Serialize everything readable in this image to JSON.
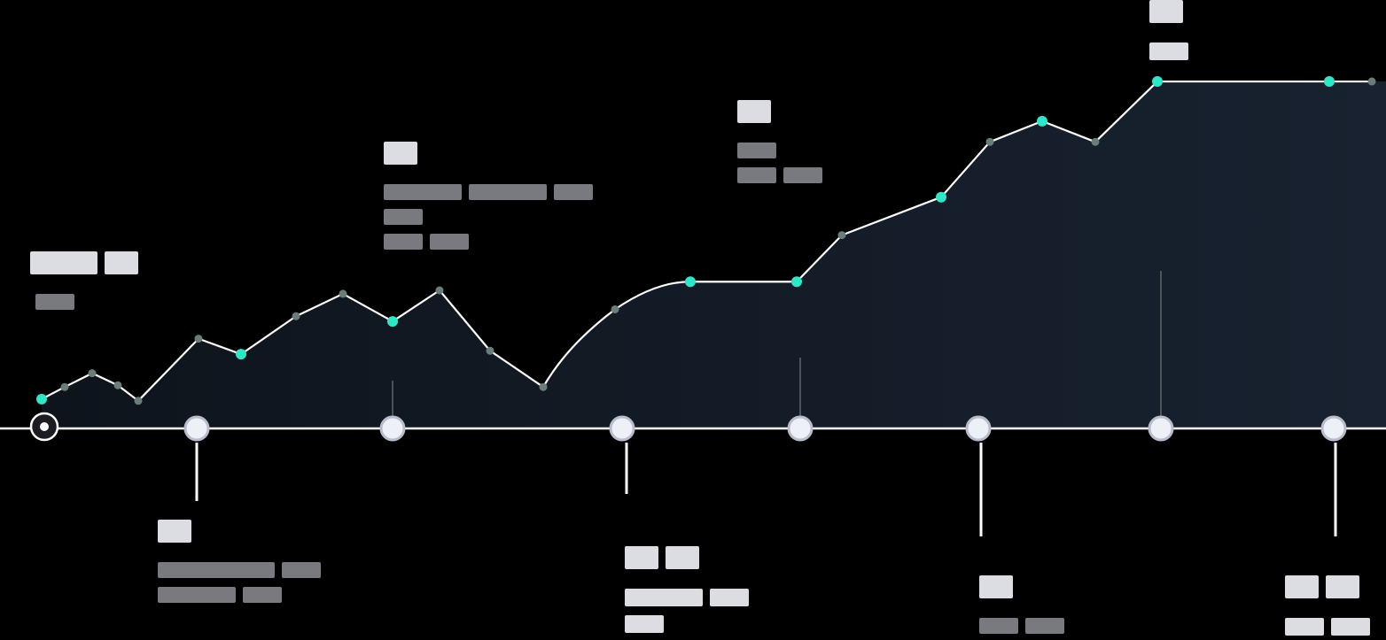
{
  "colors": {
    "background": "#000000",
    "area_fill": "#141c26",
    "trend_line": "#ffffff",
    "highlight_point": "#2ee6c8",
    "minor_point": "#6b7d7a",
    "baseline": "#ffffff",
    "node_fill": "#eef0f8",
    "node_stroke": "#b8bccb",
    "connector": "#ffffff",
    "guide": "#8a8a8a",
    "block_bright": "#e7e9ee",
    "block_dim": "#8d8f95"
  },
  "milestones": [
    {
      "id": "m0",
      "kind": "start",
      "caption_side": "above",
      "caption_lines": [
        [
          "bright",
          2,
          1
        ],
        [
          "dim",
          1
        ]
      ]
    },
    {
      "id": "m1",
      "kind": "node",
      "caption_side": "below",
      "caption_lines": [
        [
          "bright",
          1
        ],
        [
          "dim",
          3,
          1
        ],
        [
          "dim",
          2,
          1
        ]
      ]
    },
    {
      "id": "m2",
      "kind": "node",
      "caption_side": "above",
      "caption_lines": [
        [
          "bright",
          1
        ],
        [
          "dim",
          2,
          2,
          1
        ],
        [
          "dim",
          1
        ],
        [
          "dim",
          1,
          1
        ]
      ]
    },
    {
      "id": "m3",
      "kind": "node",
      "caption_side": "below",
      "caption_lines": [
        [
          "bright",
          1,
          1
        ],
        [
          "bright",
          2,
          1
        ],
        [
          "bright",
          1
        ]
      ]
    },
    {
      "id": "m4",
      "kind": "node",
      "caption_side": "above",
      "caption_lines": [
        [
          "bright",
          1
        ],
        [
          "dim",
          1
        ],
        [
          "dim",
          1,
          1
        ]
      ]
    },
    {
      "id": "m5",
      "kind": "node",
      "caption_side": "below",
      "caption_lines": [
        [
          "bright",
          1
        ],
        [
          "dim",
          1,
          1
        ]
      ]
    },
    {
      "id": "m6",
      "kind": "node",
      "caption_side": "above",
      "caption_lines": [
        [
          "bright",
          1
        ],
        [
          "bright",
          1
        ]
      ]
    },
    {
      "id": "m7",
      "kind": "node",
      "caption_side": "below",
      "caption_lines": [
        [
          "bright",
          1,
          1
        ],
        [
          "bright",
          1,
          1
        ]
      ]
    }
  ],
  "trend_points": [
    {
      "v": 0.17,
      "hl": true
    },
    {
      "v": 0.24,
      "hl": false
    },
    {
      "v": 0.32,
      "hl": false
    },
    {
      "v": 0.25,
      "hl": false
    },
    {
      "v": 0.16,
      "hl": false
    },
    {
      "v": 0.52,
      "hl": false
    },
    {
      "v": 0.43,
      "hl": true
    },
    {
      "v": 0.65,
      "hl": false
    },
    {
      "v": 0.78,
      "hl": false
    },
    {
      "v": 0.62,
      "hl": true
    },
    {
      "v": 0.8,
      "hl": false
    },
    {
      "v": 0.45,
      "hl": false
    },
    {
      "v": 0.24,
      "hl": false
    },
    {
      "v": 0.69,
      "hl": false
    },
    {
      "v": 0.85,
      "hl": true
    },
    {
      "v": 0.85,
      "hl": true
    },
    {
      "v": 1.12,
      "hl": false
    },
    {
      "v": 1.34,
      "hl": true
    },
    {
      "v": 1.66,
      "hl": false
    },
    {
      "v": 1.78,
      "hl": true
    },
    {
      "v": 1.66,
      "hl": false
    },
    {
      "v": 2.01,
      "hl": true
    },
    {
      "v": 2.01,
      "hl": true
    },
    {
      "v": 2.01,
      "hl": false
    }
  ]
}
